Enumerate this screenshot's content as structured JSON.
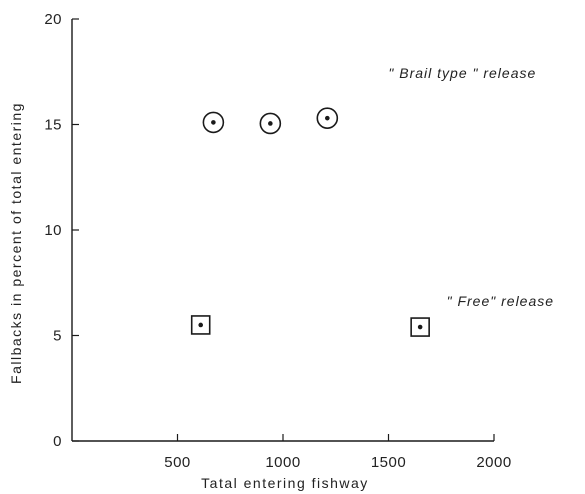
{
  "chart_data": {
    "type": "scatter",
    "title": "",
    "xlabel": "Tatal entering fishway",
    "ylabel": "Fallbacks in percent of total entering",
    "xlim": [
      0,
      2000
    ],
    "ylim": [
      0,
      20
    ],
    "xticks": [
      {
        "value": 500,
        "label": "500"
      },
      {
        "value": 1000,
        "label": "1000"
      },
      {
        "value": 1500,
        "label": "1500"
      },
      {
        "value": 2000,
        "label": "2000"
      }
    ],
    "yticks": [
      {
        "value": 0,
        "label": "0"
      },
      {
        "value": 5,
        "label": "5"
      },
      {
        "value": 10,
        "label": "10"
      },
      {
        "value": 15,
        "label": "15"
      },
      {
        "value": 20,
        "label": "20"
      }
    ],
    "series": [
      {
        "marker": "circle",
        "points": [
          {
            "x": 670,
            "y": 15.1
          },
          {
            "x": 940,
            "y": 15.05
          },
          {
            "x": 1210,
            "y": 15.3
          }
        ]
      },
      {
        "marker": "square",
        "points": [
          {
            "x": 610,
            "y": 5.5
          },
          {
            "x": 1650,
            "y": 5.4
          }
        ]
      }
    ],
    "annotations": [
      {
        "text": "\" Brail type \" release",
        "x": 1850,
        "y": 17.2
      },
      {
        "text": "\" Free\" release",
        "x": 2030,
        "y": 6.4
      }
    ],
    "grid": false,
    "legend": "none"
  }
}
